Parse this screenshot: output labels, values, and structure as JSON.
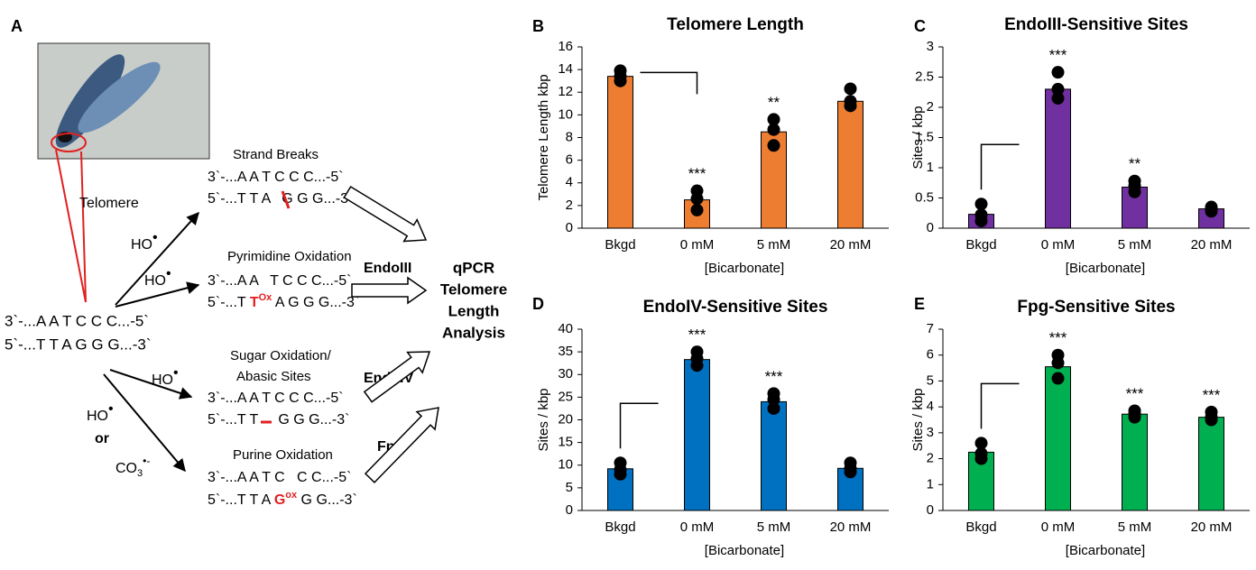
{
  "panel_a": {
    "label": "A",
    "telomere": "Telomere",
    "start_top": "3`-...A A T C C C...-5`",
    "start_bottom": "5`-...T T A G G G...-3`",
    "radical": "HO",
    "dot": "•",
    "or": "or",
    "carbonate": "CO",
    "carbonate_sub": "3",
    "carbonate_sup": "•-",
    "rows": [
      {
        "title": [
          "Strand Breaks"
        ],
        "top": "3`-...A A T C C C...-5`",
        "bottom_pre": "5`-...T T A",
        "bottom_post": "G G G...-3`"
      },
      {
        "title": [
          "Pyrimidine Oxidation"
        ],
        "top": "3`-...A A   T C C C...-5`",
        "bottom_pre": "5`-...T ",
        "mod": "T",
        "mod_sup": "Ox",
        "bottom_post": " A G G G...-3`"
      },
      {
        "title": [
          "Sugar Oxidation/",
          "Abasic Sites"
        ],
        "top": "3`-...A A T C C C...-5`",
        "bottom_pre": "5`-...T T",
        "bottom_post": "G G G...-3`"
      },
      {
        "title": [
          "Purine Oxidation"
        ],
        "top": "3`-...A A T C   C C...-5`",
        "bottom_pre": "5`-...T T A ",
        "mod": "G",
        "mod_sup": "ox",
        "bottom_post": " G G...-3`"
      }
    ],
    "enzymes": [
      "EndoIII",
      "EndoIV",
      "Fpg"
    ],
    "analysis": [
      "qPCR",
      "Telomere",
      "Length",
      "Analysis"
    ]
  },
  "chart_data": [
    {
      "type": "bar",
      "panel": "B",
      "title": "Telomere Length",
      "ylabel": "Telomere Length kbp",
      "xlabel": "[Bicarbonate]",
      "categories": [
        "Bkgd",
        "0 mM",
        "5 mM",
        "20 mM"
      ],
      "values": [
        13.4,
        2.5,
        8.5,
        11.2
      ],
      "points": [
        [
          13.9,
          13.4,
          13.0
        ],
        [
          3.3,
          2.6,
          1.6
        ],
        [
          9.6,
          8.7,
          7.3
        ],
        [
          12.3,
          11.2,
          10.8
        ]
      ],
      "annotations": [
        null,
        "***",
        "**",
        null
      ],
      "color": "#ed7d31",
      "ylim": [
        0,
        16
      ],
      "yticks": [
        0,
        2,
        4,
        6,
        8,
        10,
        12,
        14,
        16
      ]
    },
    {
      "type": "bar",
      "panel": "C",
      "title": "EndoIII-Sensitive Sites",
      "ylabel": "Sites / kbp",
      "xlabel": "[Bicarbonate]",
      "categories": [
        "Bkgd",
        "0 mM",
        "5 mM",
        "20 mM"
      ],
      "values": [
        0.23,
        2.3,
        0.68,
        0.32
      ],
      "points": [
        [
          0.4,
          0.22,
          0.12
        ],
        [
          2.58,
          2.3,
          2.15
        ],
        [
          0.78,
          0.7,
          0.6
        ],
        [
          0.35,
          0.32,
          0.28
        ]
      ],
      "annotations": [
        null,
        "***",
        "**",
        null
      ],
      "color": "#7030a0",
      "ylim": [
        0,
        3
      ],
      "yticks": [
        0,
        0.5,
        1,
        1.5,
        2,
        2.5,
        3
      ]
    },
    {
      "type": "bar",
      "panel": "D",
      "title": "EndoIV-Sensitive Sites",
      "ylabel": "Sites / kbp",
      "xlabel": "[Bicarbonate]",
      "categories": [
        "Bkgd",
        "0 mM",
        "5 mM",
        "20 mM"
      ],
      "values": [
        9.2,
        33.3,
        24,
        9.3
      ],
      "points": [
        [
          10.5,
          9,
          8
        ],
        [
          35,
          33.5,
          32
        ],
        [
          25.8,
          24.5,
          22.5
        ],
        [
          10.5,
          9.3,
          8.5
        ]
      ],
      "annotations": [
        null,
        "***",
        "***",
        null
      ],
      "color": "#0070c0",
      "ylim": [
        0,
        40
      ],
      "yticks": [
        0,
        5,
        10,
        15,
        20,
        25,
        30,
        35,
        40
      ]
    },
    {
      "type": "bar",
      "panel": "E",
      "title": "Fpg-Sensitive Sites",
      "ylabel": "Sites / kbp",
      "xlabel": "[Bicarbonate]",
      "categories": [
        "Bkgd",
        "0 mM",
        "5 mM",
        "20 mM"
      ],
      "values": [
        2.25,
        5.55,
        3.72,
        3.6
      ],
      "points": [
        [
          2.6,
          2.2,
          2.0
        ],
        [
          6.0,
          5.7,
          5.1
        ],
        [
          3.85,
          3.72,
          3.6
        ],
        [
          3.8,
          3.6,
          3.5
        ]
      ],
      "annotations": [
        null,
        "***",
        "***",
        "***"
      ],
      "color": "#00b050",
      "ylim": [
        0,
        7
      ],
      "yticks": [
        0,
        1,
        2,
        3,
        4,
        5,
        6,
        7
      ]
    }
  ]
}
